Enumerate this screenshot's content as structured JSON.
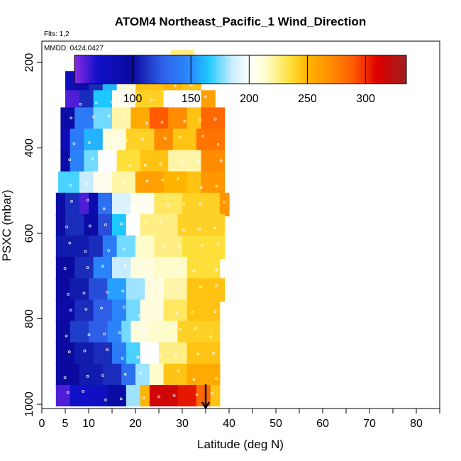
{
  "chart_data": {
    "type": "heatmap",
    "title": "ATOM4 Northeast_Pacific_1 Wind_Direction",
    "flights_label": "Flts: 1,2",
    "dates_label": "MMDD: 0424,0427",
    "xlabel": "Latitude (deg N)",
    "ylabel": "PSXC (mbar)",
    "xlim": [
      0,
      85
    ],
    "ylim": [
      1010,
      150
    ],
    "y_reversed": true,
    "x_ticks": [
      0,
      5,
      10,
      20,
      30,
      40,
      50,
      60,
      70,
      80
    ],
    "x_tick_labels": [
      "0",
      "5",
      "10",
      "20",
      "30",
      "40",
      "50",
      "60",
      "70",
      "80"
    ],
    "x_minor_ticks": [
      15,
      25,
      35,
      45,
      55,
      65,
      75,
      85
    ],
    "y_ticks": [
      200,
      400,
      600,
      800,
      1000
    ],
    "y_tick_labels": [
      "200",
      "400",
      "600",
      "800",
      "1000"
    ],
    "colorbar": {
      "range": [
        50,
        335
      ],
      "ticks": [
        100,
        150,
        200,
        250,
        300
      ],
      "tick_labels": [
        "100",
        "150",
        "200",
        "250",
        "300"
      ],
      "stops": [
        {
          "v": 50,
          "c": "#8a2be2"
        },
        {
          "v": 70,
          "c": "#1010c8"
        },
        {
          "v": 100,
          "c": "#0a0a9e"
        },
        {
          "v": 125,
          "c": "#2f5fe8"
        },
        {
          "v": 150,
          "c": "#2a8cff"
        },
        {
          "v": 165,
          "c": "#1ec8ff"
        },
        {
          "v": 185,
          "c": "#c8ecff"
        },
        {
          "v": 200,
          "c": "#ffffff"
        },
        {
          "v": 215,
          "c": "#fffccc"
        },
        {
          "v": 235,
          "c": "#ffe03a"
        },
        {
          "v": 250,
          "c": "#ffb400"
        },
        {
          "v": 270,
          "c": "#ff8c00"
        },
        {
          "v": 290,
          "c": "#ff5a00"
        },
        {
          "v": 310,
          "c": "#dc0000"
        },
        {
          "v": 335,
          "c": "#a01e1e"
        }
      ]
    },
    "bands": [
      {
        "p_top": 170,
        "p_bot": 225,
        "cells": [
          [
            27.5,
            32.5,
            225
          ]
        ]
      },
      {
        "p_top": 220,
        "p_bot": 270,
        "cells": [
          [
            5,
            7,
            80
          ],
          [
            7,
            10,
            90
          ],
          [
            10,
            13,
            110
          ],
          [
            13,
            16,
            160
          ],
          [
            16,
            20,
            210
          ],
          [
            20,
            26,
            245
          ],
          [
            26,
            30,
            250
          ],
          [
            30,
            34,
            245
          ]
        ]
      },
      {
        "p_top": 265,
        "p_bot": 310,
        "cells": [
          [
            5,
            8,
            60
          ],
          [
            8,
            11,
            110
          ],
          [
            11,
            15,
            165
          ],
          [
            15,
            20,
            205
          ],
          [
            20,
            26,
            240
          ],
          [
            26,
            34,
            200
          ],
          [
            34,
            37,
            260
          ]
        ]
      },
      {
        "p_top": 305,
        "p_bot": 360,
        "cells": [
          [
            4,
            7,
            95
          ],
          [
            7,
            11,
            140
          ],
          [
            11,
            15,
            175
          ],
          [
            15,
            19,
            220
          ],
          [
            19,
            23,
            255
          ],
          [
            23,
            27,
            290
          ],
          [
            27,
            31,
            270
          ],
          [
            31,
            34,
            245
          ],
          [
            34,
            39,
            285
          ]
        ]
      },
      {
        "p_top": 355,
        "p_bot": 410,
        "cells": [
          [
            4,
            6,
            85
          ],
          [
            6,
            9,
            140
          ],
          [
            9,
            13,
            160
          ],
          [
            13,
            18,
            210
          ],
          [
            18,
            24,
            240
          ],
          [
            24,
            28,
            270
          ],
          [
            28,
            33,
            245
          ],
          [
            33,
            39,
            280
          ]
        ]
      },
      {
        "p_top": 405,
        "p_bot": 460,
        "cells": [
          [
            4,
            6,
            95
          ],
          [
            6,
            9,
            145
          ],
          [
            9,
            12,
            175
          ],
          [
            12,
            16,
            200
          ],
          [
            16,
            21,
            235
          ],
          [
            21,
            27,
            245
          ],
          [
            27,
            34,
            220
          ],
          [
            34,
            39,
            270
          ]
        ]
      },
      {
        "p_top": 455,
        "p_bot": 510,
        "cells": [
          [
            3.5,
            5,
            170
          ],
          [
            5,
            8,
            170
          ],
          [
            8,
            11,
            185
          ],
          [
            11,
            15,
            205
          ],
          [
            15,
            20,
            220
          ],
          [
            20,
            26,
            260
          ],
          [
            26,
            31,
            250
          ],
          [
            31,
            34,
            245
          ],
          [
            34,
            39,
            265
          ]
        ]
      },
      {
        "p_top": 505,
        "p_bot": 560,
        "cells": [
          [
            3,
            5,
            95
          ],
          [
            5,
            8,
            110
          ],
          [
            8,
            10,
            60
          ],
          [
            10,
            12,
            90
          ],
          [
            12,
            15,
            135
          ],
          [
            15,
            19,
            190
          ],
          [
            19,
            24,
            205
          ],
          [
            24,
            30,
            230
          ],
          [
            30,
            38,
            240
          ],
          [
            38,
            40,
            265
          ]
        ]
      },
      {
        "p_top": 555,
        "p_bot": 610,
        "cells": [
          [
            3,
            5,
            95
          ],
          [
            5,
            9,
            110
          ],
          [
            9,
            12,
            95
          ],
          [
            12,
            15,
            120
          ],
          [
            15,
            18,
            165
          ],
          [
            18,
            21,
            200
          ],
          [
            21,
            29,
            225
          ],
          [
            29,
            39,
            240
          ]
        ]
      },
      {
        "p_top": 605,
        "p_bot": 660,
        "cells": [
          [
            3,
            6,
            105
          ],
          [
            6,
            10,
            105
          ],
          [
            10,
            13,
            110
          ],
          [
            13,
            16,
            140
          ],
          [
            16,
            20,
            175
          ],
          [
            20,
            24,
            215
          ],
          [
            24,
            30,
            225
          ],
          [
            30,
            39,
            235
          ]
        ]
      },
      {
        "p_top": 655,
        "p_bot": 710,
        "cells": [
          [
            3,
            7,
            100
          ],
          [
            7,
            11,
            110
          ],
          [
            11,
            15,
            145
          ],
          [
            15,
            19,
            185
          ],
          [
            19,
            24,
            210
          ],
          [
            24,
            31,
            215
          ],
          [
            31,
            38,
            235
          ]
        ]
      },
      {
        "p_top": 705,
        "p_bot": 760,
        "cells": [
          [
            3,
            6,
            100
          ],
          [
            6,
            10,
            105
          ],
          [
            10,
            14,
            120
          ],
          [
            14,
            18,
            155
          ],
          [
            18,
            22,
            180
          ],
          [
            22,
            26,
            210
          ],
          [
            26,
            31,
            220
          ],
          [
            31,
            39,
            245
          ]
        ]
      },
      {
        "p_top": 755,
        "p_bot": 810,
        "cells": [
          [
            3,
            7,
            95
          ],
          [
            7,
            11,
            110
          ],
          [
            11,
            15,
            125
          ],
          [
            15,
            18,
            145
          ],
          [
            18,
            21,
            175
          ],
          [
            21,
            26,
            210
          ],
          [
            26,
            31,
            230
          ],
          [
            31,
            38,
            245
          ]
        ]
      },
      {
        "p_top": 805,
        "p_bot": 860,
        "cells": [
          [
            3,
            6,
            100
          ],
          [
            6,
            10,
            115
          ],
          [
            10,
            14,
            125
          ],
          [
            14,
            17,
            145
          ],
          [
            17,
            19,
            175
          ],
          [
            19,
            23,
            210
          ],
          [
            23,
            29,
            215
          ],
          [
            29,
            38,
            240
          ]
        ]
      },
      {
        "p_top": 855,
        "p_bot": 910,
        "cells": [
          [
            3,
            7,
            100
          ],
          [
            7,
            11,
            105
          ],
          [
            11,
            15,
            110
          ],
          [
            15,
            18,
            140
          ],
          [
            18,
            21,
            170
          ],
          [
            21,
            25,
            200
          ],
          [
            25,
            31,
            225
          ],
          [
            31,
            38,
            245
          ]
        ]
      },
      {
        "p_top": 905,
        "p_bot": 960,
        "cells": [
          [
            3,
            8,
            100
          ],
          [
            8,
            13,
            105
          ],
          [
            13,
            17,
            110
          ],
          [
            17,
            20,
            135
          ],
          [
            20,
            23,
            180
          ],
          [
            23,
            26,
            215
          ],
          [
            26,
            31,
            245
          ],
          [
            31,
            38,
            255
          ]
        ]
      },
      {
        "p_top": 955,
        "p_bot": 1005,
        "cells": [
          [
            3,
            6,
            60
          ],
          [
            6,
            10,
            70
          ],
          [
            10,
            14,
            75
          ],
          [
            14,
            18,
            95
          ],
          [
            18,
            21,
            180
          ],
          [
            21,
            23,
            250
          ],
          [
            23,
            29,
            315
          ],
          [
            29,
            33,
            305
          ],
          [
            33,
            36,
            285
          ],
          [
            36,
            38,
            245
          ]
        ]
      }
    ],
    "marker": {
      "x": 35,
      "y": 960,
      "label": "arrow"
    }
  }
}
